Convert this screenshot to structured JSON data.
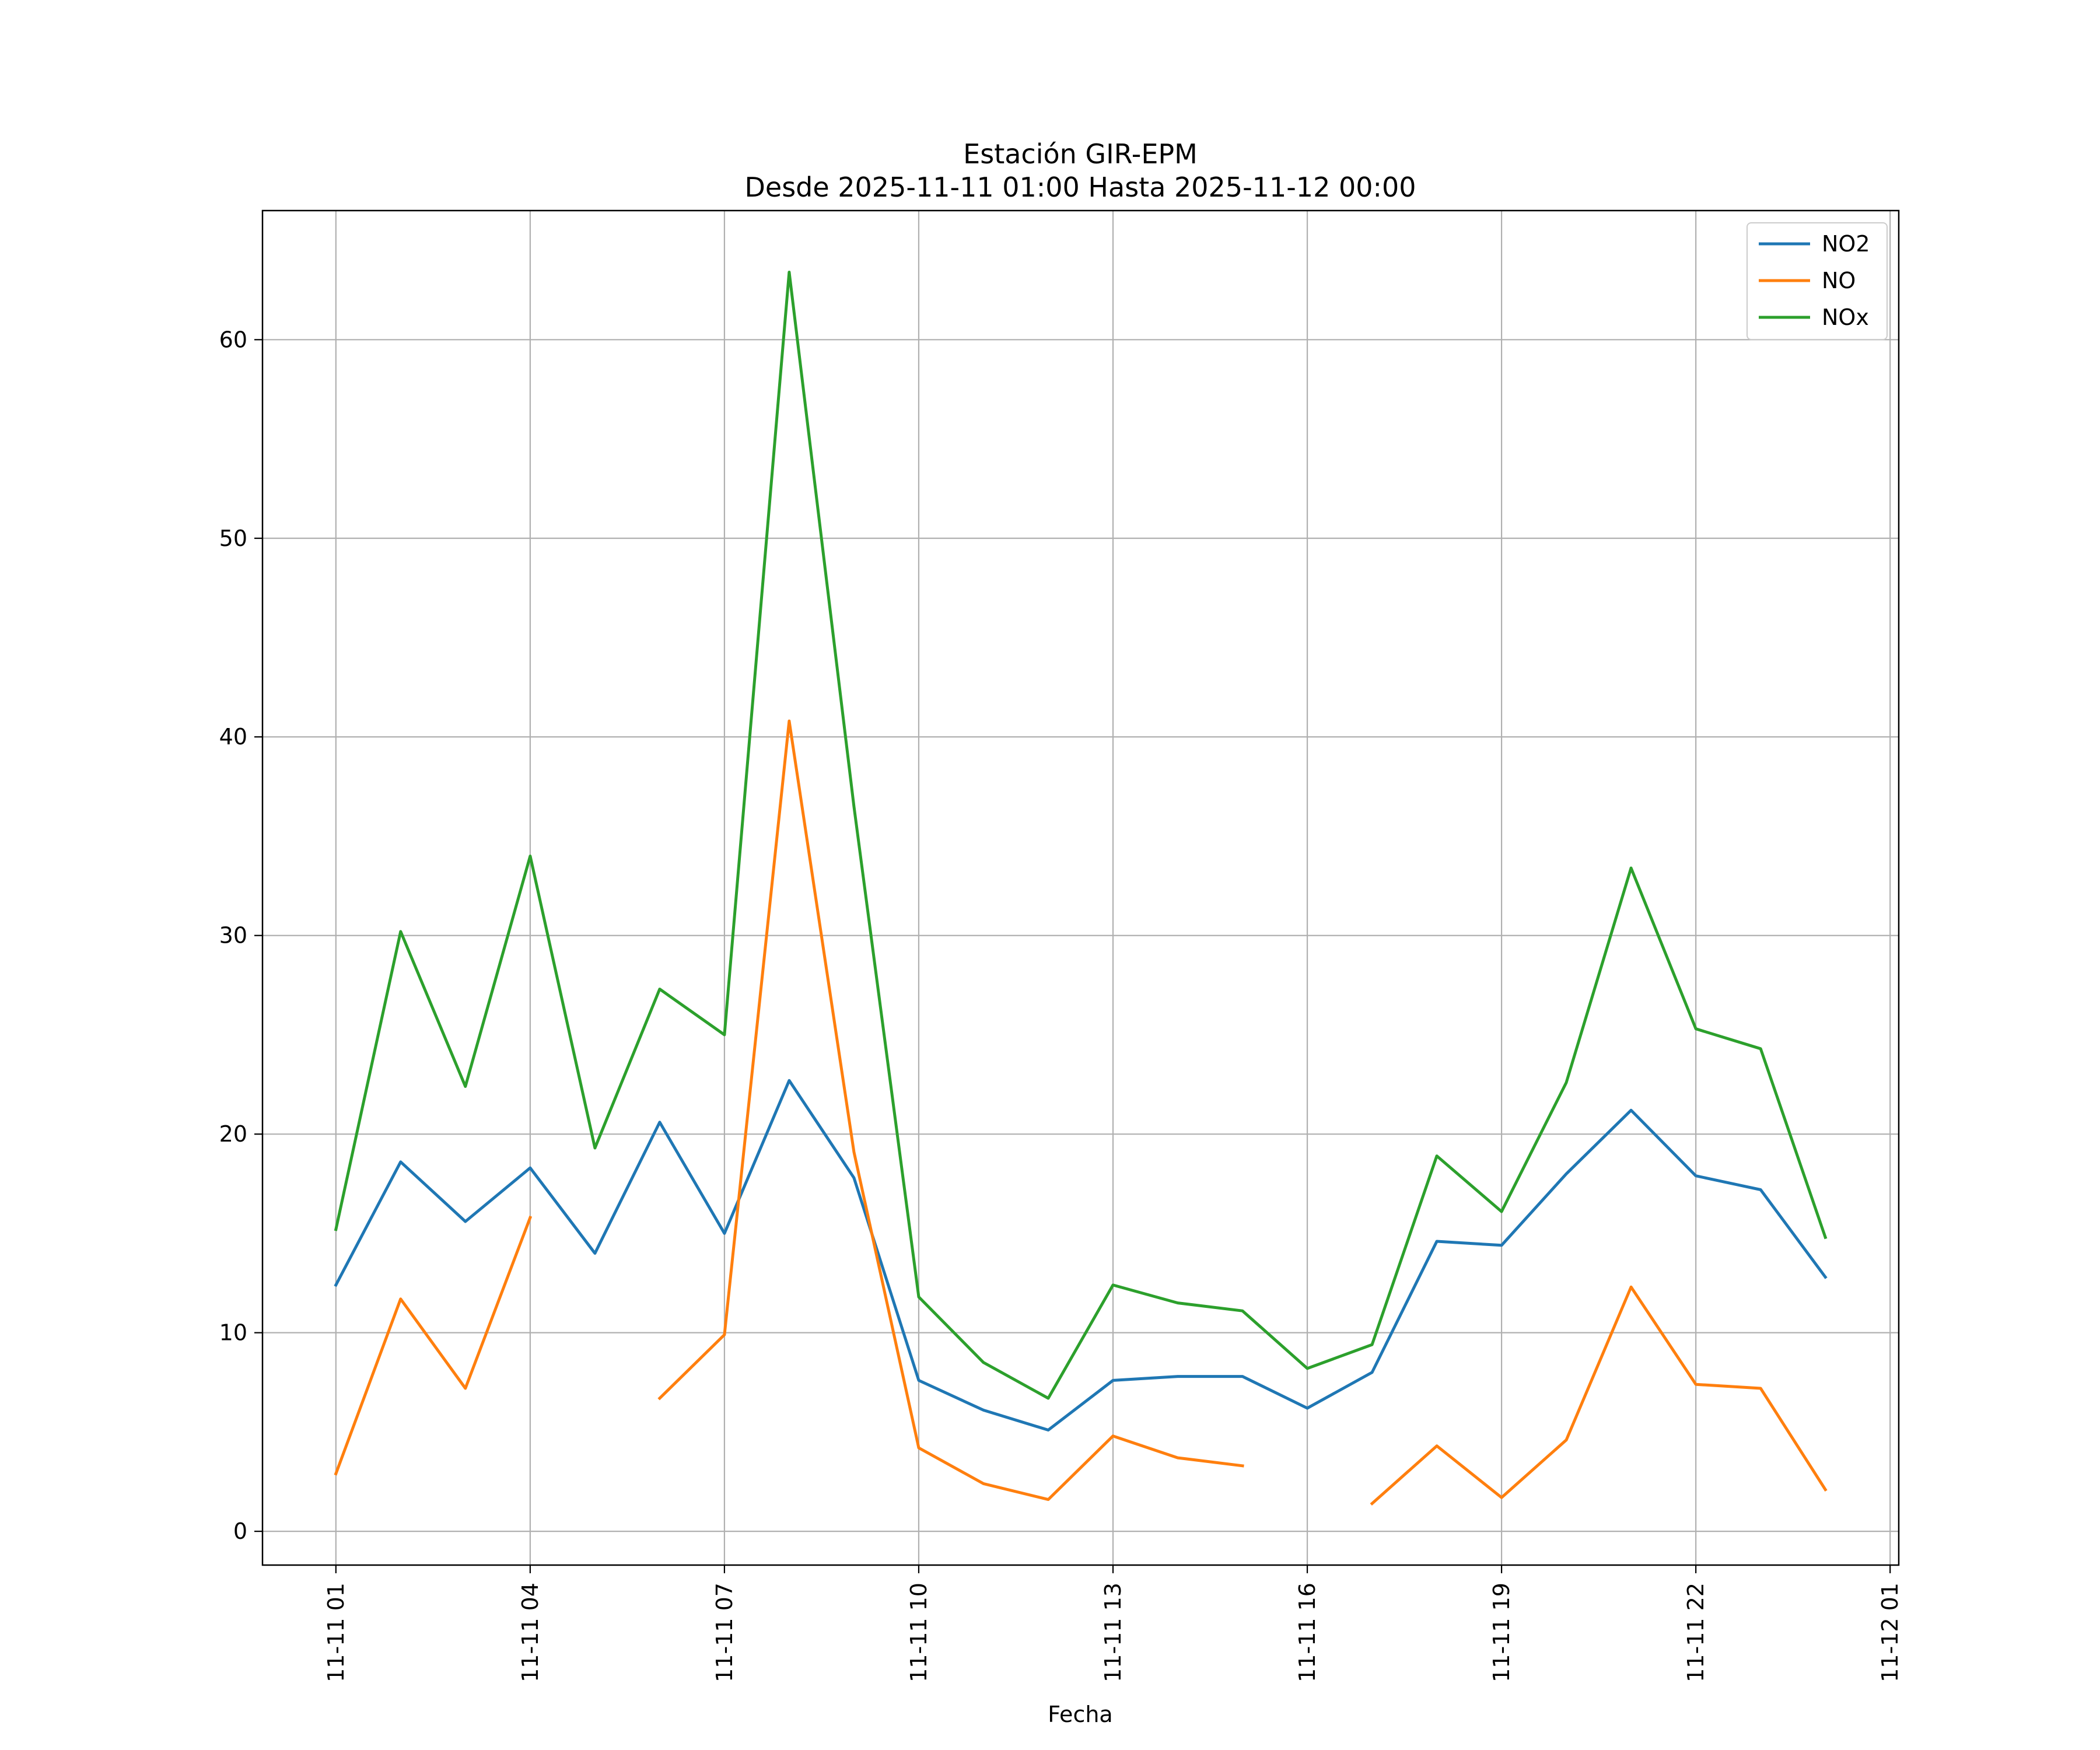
{
  "chart_data": {
    "type": "line",
    "title": "Estación GIR-EPM",
    "subtitle": "Desde 2025-11-11 01:00 Hasta 2025-11-12 00:00",
    "xlabel": "Fecha",
    "ylabel": "",
    "x": [
      "2025-11-11 01:00",
      "2025-11-11 02:00",
      "2025-11-11 03:00",
      "2025-11-11 04:00",
      "2025-11-11 05:00",
      "2025-11-11 06:00",
      "2025-11-11 07:00",
      "2025-11-11 08:00",
      "2025-11-11 09:00",
      "2025-11-11 10:00",
      "2025-11-11 11:00",
      "2025-11-11 12:00",
      "2025-11-11 13:00",
      "2025-11-11 14:00",
      "2025-11-11 15:00",
      "2025-11-11 16:00",
      "2025-11-11 17:00",
      "2025-11-11 18:00",
      "2025-11-11 19:00",
      "2025-11-11 20:00",
      "2025-11-11 21:00",
      "2025-11-11 22:00",
      "2025-11-11 23:00",
      "2025-11-12 00:00"
    ],
    "xlim": [
      "2025-11-10 23:52",
      "2025-11-12 01:08"
    ],
    "ylim": [
      -1.7,
      66.5
    ],
    "xticks": [
      "11-11 01",
      "11-11 04",
      "11-11 07",
      "11-11 10",
      "11-11 13",
      "11-11 16",
      "11-11 19",
      "11-11 22",
      "11-12 01"
    ],
    "yticks": [
      0,
      10,
      20,
      30,
      40,
      50,
      60
    ],
    "grid": true,
    "legend_position": "top-right",
    "series": [
      {
        "name": "NO2",
        "color": "#1f77b4",
        "values": [
          12.4,
          18.6,
          15.6,
          18.3,
          14.0,
          20.6,
          15.0,
          22.7,
          17.8,
          7.6,
          6.1,
          5.1,
          7.6,
          7.8,
          7.8,
          6.2,
          8.0,
          14.6,
          14.4,
          18.0,
          21.2,
          17.9,
          17.2,
          12.8
        ]
      },
      {
        "name": "NO",
        "color": "#ff7f0e",
        "values": [
          2.9,
          11.7,
          7.2,
          15.8,
          null,
          6.7,
          9.9,
          40.8,
          19.1,
          4.2,
          2.4,
          1.6,
          4.8,
          3.7,
          3.3,
          null,
          1.4,
          4.3,
          1.7,
          4.6,
          12.3,
          7.4,
          7.2,
          2.1
        ]
      },
      {
        "name": "NOx",
        "color": "#2ca02c",
        "values": [
          15.2,
          30.2,
          22.4,
          34.0,
          19.3,
          27.3,
          25.0,
          63.4,
          36.5,
          11.8,
          8.5,
          6.7,
          12.4,
          11.5,
          11.1,
          8.2,
          9.4,
          18.9,
          16.1,
          22.6,
          33.4,
          25.3,
          24.3,
          14.8
        ]
      }
    ]
  }
}
